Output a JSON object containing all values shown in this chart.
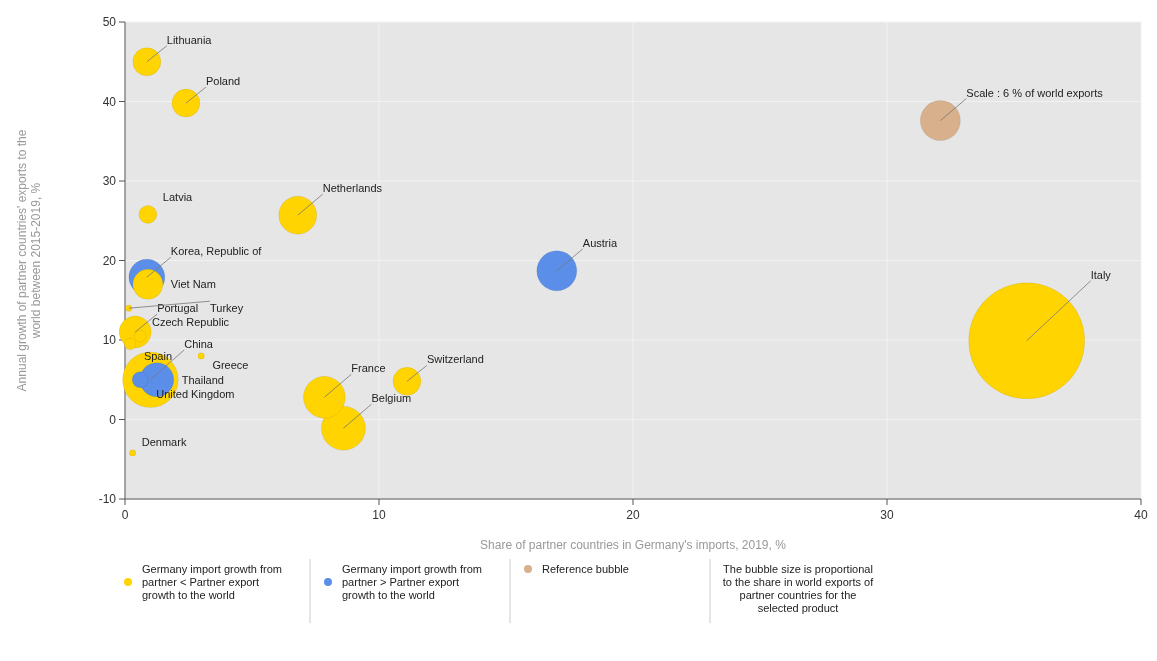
{
  "chart_data": {
    "type": "bubble",
    "xlabel": "Share of partner countries in Germany's imports, 2019, %",
    "ylabel": "Annual growth of partner countries' exports to the world between 2015-2019, %",
    "xlim": [
      0,
      40
    ],
    "xticks": [
      0,
      10,
      20,
      30,
      40
    ],
    "ylim": [
      -10,
      50
    ],
    "yticks": [
      -10,
      0,
      10,
      20,
      30,
      40,
      50
    ],
    "grid": true,
    "legend": "bottom",
    "series": [
      {
        "name": "Germany import growth from partner < Partner export growth to the world",
        "color": "#ffd400",
        "x": [
          0.86,
          2.4,
          0.9,
          6.8,
          0.9,
          0.15,
          0.4,
          0.2,
          0.6,
          3.0,
          1.0,
          7.85,
          8.6,
          11.1,
          35.5,
          0.3
        ],
        "values": [
          45,
          39.8,
          25.8,
          25.7,
          17,
          14,
          11,
          9.5,
          10.5,
          8,
          5,
          2.8,
          -1.1,
          4.8,
          9.9,
          -4.2
        ],
        "sizes": [
          0.058,
          0.058,
          0.024,
          0.107,
          0.067,
          0.003,
          0.076,
          0.01,
          0.01,
          0.003,
          0.23,
          0.13,
          0.144,
          0.058,
          1,
          0.003
        ]
      },
      {
        "name": "Germany import growth from partner > Partner export growth to the world",
        "color": "#5a8ee8",
        "x": [
          0.86,
          1.25,
          0.6,
          17.0
        ],
        "values": [
          17.9,
          5,
          5,
          18.7
        ],
        "sizes": [
          0.096,
          0.086,
          0.019,
          0.119
        ]
      },
      {
        "name": "Reference bubble",
        "color": "#d8b08c",
        "x": [
          32.1
        ],
        "values": [
          37.6
        ],
        "sizes": [
          0.119
        ]
      }
    ],
    "annotations": [
      {
        "text": "Lithuania",
        "x": 0.86,
        "y": 45
      },
      {
        "text": "Poland",
        "x": 2.4,
        "y": 39.8
      },
      {
        "text": "Latvia",
        "x": 0.9,
        "y": 25.8
      },
      {
        "text": "Netherlands",
        "x": 6.8,
        "y": 25.7
      },
      {
        "text": "Korea, Republic of",
        "x": 0.86,
        "y": 17.9
      },
      {
        "text": "Viet Nam",
        "x": 0.9,
        "y": 17
      },
      {
        "text": "Turkey",
        "x": 0.15,
        "y": 14
      },
      {
        "text": "Czech Republic",
        "x": 0.6,
        "y": 10.5
      },
      {
        "text": "Portugal",
        "x": 0.4,
        "y": 11
      },
      {
        "text": "Spain",
        "x": 0.2,
        "y": 9.5
      },
      {
        "text": "Greece",
        "x": 3.0,
        "y": 8
      },
      {
        "text": "Thailand",
        "x": 1.25,
        "y": 5
      },
      {
        "text": "United Kingdom",
        "x": 0.6,
        "y": 5
      },
      {
        "text": "China",
        "x": 1.0,
        "y": 5
      },
      {
        "text": "Denmark",
        "x": 0.3,
        "y": -4.2
      },
      {
        "text": "France",
        "x": 7.85,
        "y": 2.8
      },
      {
        "text": "Belgium",
        "x": 8.6,
        "y": -1.1
      },
      {
        "text": "Switzerland",
        "x": 11.1,
        "y": 4.8
      },
      {
        "text": "Austria",
        "x": 17.0,
        "y": 18.7
      },
      {
        "text": "Italy",
        "x": 35.5,
        "y": 9.9
      },
      {
        "text": "Scale : 6 % of world exports",
        "x": 32.1,
        "y": 37.6
      },
      "The bubble size is proportional to the share in world exports of partner countries for the selected product"
    ]
  }
}
